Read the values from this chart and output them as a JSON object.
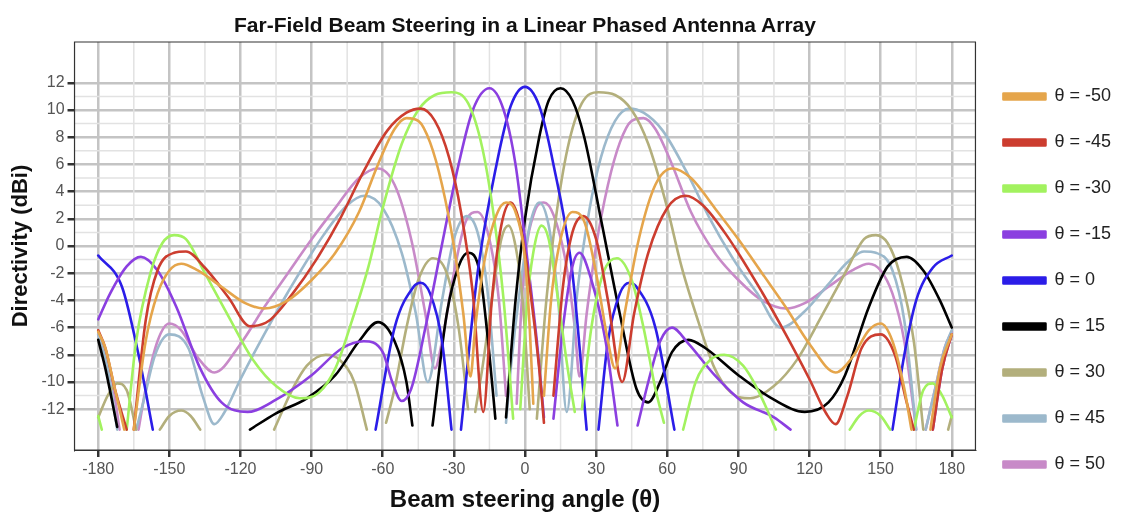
{
  "chart_data": {
    "type": "line",
    "title": "Far-Field Beam Steering in a Linear Phased Antenna Array",
    "xlabel": "Beam steering angle (θ)",
    "ylabel": "Directivity (dBi)",
    "xlim": [
      -190,
      190
    ],
    "xticks": [
      -180,
      -150,
      -120,
      -90,
      -60,
      -30,
      0,
      30,
      60,
      90,
      120,
      150,
      180
    ],
    "ylim": [
      -15,
      15
    ],
    "yticks": [
      -12,
      -10,
      -8,
      -6,
      -4,
      -2,
      0,
      2,
      4,
      6,
      8,
      10,
      12
    ],
    "grid": true,
    "legend": "right",
    "series": [
      {
        "name": "θ = -50",
        "color": "#e5a54b",
        "x": [
          -180,
          -177,
          -173,
          -169,
          -167,
          -165,
          -160,
          -155,
          -150,
          -145,
          -138,
          -128,
          -118,
          -110,
          -100,
          -90,
          -80,
          -70,
          -62,
          -55,
          -50,
          -45,
          -40,
          -35,
          -30,
          -26,
          -23,
          -21,
          -17,
          -12,
          -8,
          -4,
          0,
          2,
          3.5,
          6,
          8,
          11,
          15,
          20,
          25,
          30,
          35,
          38,
          42,
          48,
          55,
          62,
          70,
          80,
          90,
          100,
          110,
          120,
          131,
          138,
          145,
          150,
          155,
          160,
          163,
          167,
          171,
          175,
          180
        ],
        "values": [
          -6.3,
          -7.5,
          -10.5,
          -13.5,
          null,
          -13.5,
          -7,
          -3.5,
          -1.8,
          -1.3,
          -1.8,
          -3,
          -4.2,
          -4.6,
          -4,
          -2.5,
          -0.5,
          2.5,
          6,
          8.6,
          9.4,
          9.2,
          7.6,
          4.5,
          0,
          -5,
          -9.6,
          -6,
          -1,
          2.3,
          3.2,
          2.5,
          -1,
          -6,
          -11.6,
          null,
          -11,
          -4,
          0.5,
          2.5,
          1.8,
          -2,
          -7,
          -9,
          -5,
          0.5,
          4.5,
          5.7,
          5,
          2.8,
          0.5,
          -2,
          -4.5,
          -7.2,
          -9.3,
          -8.2,
          -6.2,
          -5.7,
          -7,
          -10.5,
          -13.5,
          null,
          -13.5,
          -9,
          -6.5
        ]
      },
      {
        "name": "θ = -45",
        "color": "#cc3d2f",
        "x": [
          -180,
          -177,
          -173,
          -168,
          -166,
          -165,
          -160,
          -155,
          -148,
          -143,
          -135,
          -125,
          -116,
          -108,
          -98,
          -88,
          -78,
          -68,
          -58,
          -50,
          -44,
          -38,
          -32,
          -27,
          -22,
          -17.6,
          -14,
          -10,
          -6,
          -2,
          2,
          6,
          8,
          10,
          12,
          16,
          20,
          24.6,
          30,
          35,
          41,
          46,
          52,
          60,
          67.7,
          75,
          85,
          100,
          110,
          120,
          127,
          131,
          136,
          142,
          150,
          156,
          161,
          164,
          168,
          172,
          176,
          180
        ],
        "values": [
          -6.2,
          -7.5,
          -10.5,
          -13.5,
          null,
          -13.5,
          -5.5,
          -1.8,
          -0.5,
          -0.4,
          -1.6,
          -3.8,
          -5.9,
          -5.5,
          -3.5,
          -1,
          2,
          5.5,
          8.5,
          9.8,
          10.1,
          9.2,
          6.5,
          2.5,
          -3.5,
          -12.2,
          -4,
          1.5,
          3.2,
          1.5,
          -3,
          -9,
          -13,
          null,
          -11,
          -3,
          1,
          2.2,
          0.5,
          -4,
          -10,
          -5,
          -0.5,
          2.8,
          3.7,
          3,
          0.8,
          -3.4,
          -6.5,
          -9.8,
          -12.3,
          -13.1,
          -11,
          -7.5,
          -6.5,
          -8,
          -11.5,
          -13.5,
          null,
          -13.5,
          -9,
          -6.5
        ]
      },
      {
        "name": "θ = -30",
        "color": "#a2f25f",
        "x": [
          -180,
          -178.5,
          -173,
          -168,
          -164,
          -158,
          -153,
          -148,
          -143,
          -135,
          -125,
          -115,
          -105,
          -95,
          -87,
          -80,
          -73,
          -66,
          -60,
          -52,
          -45,
          -38,
          -31,
          -24,
          -18,
          -13,
          -9,
          -5,
          -3.5,
          -2,
          1,
          4,
          7,
          10,
          14,
          18,
          21,
          22.5,
          24,
          28,
          33,
          38.8,
          45,
          50,
          55,
          58.6,
          62,
          66.7,
          72,
          78,
          84,
          92,
          98,
          105.8,
          120,
          137,
          141,
          145,
          150,
          154,
          160,
          164,
          168,
          172,
          176,
          180
        ],
        "values": [
          -12.5,
          -13.5,
          null,
          -13.5,
          -7,
          -2,
          0.2,
          0.8,
          0.5,
          -2,
          -5.2,
          -8.3,
          -10.3,
          -11.2,
          -10.8,
          -9,
          -5.5,
          -1.5,
          2.8,
          7.5,
          10,
          11.1,
          11.3,
          10.5,
          7.2,
          2,
          -4,
          -12.7,
          null,
          -12,
          -4,
          0,
          1.5,
          0.5,
          -4,
          -9,
          -12.2,
          null,
          -12,
          -6,
          -2,
          -0.9,
          -2.5,
          -6,
          -10.5,
          -13,
          null,
          -13.5,
          -10,
          -8.4,
          -8,
          -8.8,
          -10.5,
          -13.5,
          null,
          -13.5,
          -12.5,
          -12.1,
          -12.5,
          -13.5,
          null,
          -13.5,
          -10.6,
          -10.1,
          -11,
          -12.6
        ]
      },
      {
        "name": "θ = -15",
        "color": "#8b3fe0",
        "x": [
          -180,
          -175,
          -168,
          -162,
          -155,
          -147,
          -137,
          -128,
          -117,
          -105,
          -90,
          -77,
          -68,
          -60,
          -56,
          -52,
          -48,
          -42,
          -34,
          -28,
          -22,
          -15,
          -9,
          -4,
          1,
          5,
          8,
          10,
          12,
          16,
          20,
          23,
          28,
          34,
          39,
          43,
          47.5,
          52,
          57,
          62,
          69,
          80,
          92,
          105,
          112,
          140,
          172,
          176,
          180
        ],
        "values": [
          -5.4,
          -3.5,
          -1.5,
          -0.8,
          -1.8,
          -4.5,
          -9,
          -11.5,
          -12.2,
          -11.3,
          -9.5,
          -7.5,
          -7,
          -7.8,
          -10,
          -11.4,
          -10.5,
          -6,
          1,
          6,
          10,
          11.6,
          10,
          6,
          -1,
          -7,
          -12.6,
          null,
          -12.7,
          -6,
          -1.5,
          -0.5,
          -2.5,
          -7,
          -13.2,
          null,
          -13.2,
          -10,
          -7,
          -6,
          -7.2,
          -9.5,
          -11.5,
          -12.6,
          -13.5,
          null,
          -13.5,
          -9,
          -6.5
        ]
      },
      {
        "name": "θ = 0",
        "color": "#2b1de8",
        "x": [
          -180,
          -170,
          -163,
          -157,
          -110,
          -63,
          -55,
          -47,
          -44,
          -40,
          -35,
          -31,
          -29,
          -27,
          -20,
          -12,
          -6,
          0,
          6,
          12,
          20,
          26,
          28.5,
          31,
          35,
          40,
          44,
          47,
          55,
          63,
          110,
          155,
          160,
          165,
          172,
          180
        ],
        "values": [
          -0.7,
          -3,
          -8,
          -13.5,
          null,
          -13.5,
          -6,
          -3,
          -2.7,
          -3.5,
          -7,
          -13.5,
          null,
          -13.5,
          -2,
          6,
          10.3,
          11.7,
          10.3,
          6,
          -2,
          -13.5,
          null,
          -13.5,
          -7,
          -3.5,
          -2.7,
          -3,
          -6,
          -13.5,
          null,
          -13.5,
          -8,
          -4,
          -1.6,
          -0.7
        ]
      },
      {
        "name": "θ = 15",
        "color": "#000000",
        "x": [
          -180,
          -177,
          -172,
          -140,
          -116,
          -105,
          -92,
          -80,
          -70,
          -62,
          -55,
          -50,
          -47.5,
          -43,
          -39,
          -33,
          -28,
          -24,
          -19,
          -15,
          -12.5,
          -10,
          -8,
          -4,
          0,
          6,
          10,
          15,
          20,
          25,
          32,
          40,
          47,
          52,
          57,
          62,
          69,
          76,
          90,
          105,
          118,
          128,
          135,
          145,
          153,
          161,
          168,
          175,
          180
        ],
        "values": [
          -6.9,
          -9,
          -13.3,
          null,
          -13.5,
          -12.3,
          -11.2,
          -9.5,
          -7,
          -5.6,
          -7,
          -10,
          -13.2,
          null,
          -13.2,
          -5,
          -1.5,
          -0.5,
          -2,
          -8,
          -12.7,
          null,
          -12.6,
          -4,
          2,
          8,
          10.7,
          11.6,
          10.7,
          8,
          2,
          -5,
          -10.5,
          -11.5,
          -10,
          -7.8,
          -6.9,
          -7.5,
          -9.5,
          -11.3,
          -12.2,
          -11.5,
          -9.5,
          -4.5,
          -1.5,
          -0.8,
          -1.8,
          -4,
          -6
        ]
      },
      {
        "name": "θ = 30",
        "color": "#b3af7c",
        "x": [
          -180,
          -176,
          -172,
          -168,
          -164,
          -159,
          -154,
          -150,
          -145,
          -141,
          -137,
          -120,
          -105.8,
          -98,
          -92,
          -84,
          -78,
          -72,
          -66.7,
          -62,
          -58.6,
          -55,
          -50,
          -45,
          -38.8,
          -33,
          -28,
          -24,
          -22.5,
          -21,
          -18,
          -14,
          -10,
          -7,
          -4,
          -1,
          2,
          3.5,
          5,
          9,
          13,
          18,
          24,
          31,
          38,
          45,
          52,
          60,
          66,
          73,
          80,
          87,
          95,
          105,
          115,
          125,
          135,
          143,
          148,
          153,
          158,
          164,
          168,
          173,
          178.5,
          180
        ],
        "values": [
          -12.6,
          -11,
          -10.1,
          -10.6,
          -13.5,
          null,
          -13.5,
          -12.5,
          -12.1,
          -12.5,
          -13.5,
          null,
          -13.5,
          -10.5,
          -8.8,
          -8,
          -8.4,
          -10,
          -13.5,
          null,
          -13,
          -10.5,
          -6,
          -2.5,
          -0.9,
          -2,
          -6,
          -12,
          null,
          -12.2,
          -9,
          -4,
          0.5,
          1.5,
          0,
          -4,
          -12,
          null,
          -12.7,
          -4,
          2,
          7.2,
          10.5,
          11.3,
          11.1,
          10,
          7.5,
          2.8,
          -1.5,
          -5.5,
          -9,
          -10.8,
          -11.2,
          -10.3,
          -8.3,
          -5.2,
          -2,
          0.5,
          0.8,
          0.2,
          -2,
          -7,
          -13.5,
          null,
          -13.5,
          -12.5
        ]
      },
      {
        "name": "θ = 45",
        "color": "#9cb9cc",
        "x": [
          -180,
          -176,
          -172,
          -168,
          -164,
          -161,
          -156,
          -150,
          -142,
          -136,
          -131,
          -127,
          -120,
          -110,
          -100,
          -85,
          -75,
          -67.7,
          -60,
          -52,
          -46,
          -41,
          -35,
          -30,
          -24.6,
          -20,
          -16,
          -12,
          -10,
          -8,
          -6,
          -2,
          2,
          6,
          10,
          14,
          17.6,
          22,
          27,
          32,
          38,
          44,
          50,
          58,
          68,
          78,
          88,
          98,
          108,
          118,
          128,
          136,
          143,
          148,
          155,
          160,
          165,
          167,
          169,
          173,
          177,
          180
        ],
        "values": [
          -6.5,
          -9,
          -13.5,
          null,
          -13.5,
          -11.5,
          -8,
          -6.5,
          -7.5,
          -11,
          -13.1,
          -12.3,
          -9.8,
          -6.5,
          -3.4,
          0.8,
          3,
          3.7,
          2.8,
          -0.5,
          -5,
          -10,
          -4,
          0.5,
          2.2,
          1,
          -3,
          -11,
          null,
          -13,
          -9,
          -3,
          1.5,
          3.2,
          1.5,
          -4,
          -12.2,
          -3.5,
          2.5,
          6.5,
          9.2,
          10.1,
          9.8,
          8.5,
          5.5,
          2,
          -1,
          -3.5,
          -6,
          -4.8,
          -2.8,
          -1.2,
          -0.4,
          -0.5,
          -1.8,
          -5.5,
          -13.5,
          null,
          -13.5,
          -10.5,
          -7.5,
          -6.2
        ]
      },
      {
        "name": "θ = 50",
        "color": "#c88ac8",
        "x": [
          -180,
          -175,
          -171,
          -167,
          -163,
          -160,
          -155,
          -150,
          -145,
          -138,
          -131,
          -120,
          -110,
          -100,
          -90,
          -80,
          -70,
          -62,
          -55,
          -48,
          -42,
          -38,
          -35,
          -30,
          -25,
          -20,
          -15,
          -11,
          -8,
          -6,
          -3.5,
          -2,
          0,
          4,
          8,
          12,
          17,
          21,
          23,
          26,
          30,
          35,
          40,
          45,
          50,
          55,
          62,
          70,
          80,
          90,
          100,
          110,
          118,
          128,
          138,
          145,
          150,
          155,
          160,
          165,
          167,
          169,
          173,
          177,
          180
        ],
        "values": [
          -6.5,
          -9,
          -13.5,
          null,
          -13.5,
          -10.5,
          -7,
          -5.7,
          -6.2,
          -8.2,
          -9.3,
          -7.2,
          -4.5,
          -2,
          0.5,
          2.8,
          5,
          5.7,
          4.5,
          0.5,
          -5,
          -9,
          -7,
          -2,
          1.8,
          2.5,
          0.5,
          -4,
          -11,
          null,
          -11.6,
          -6,
          -1,
          2.5,
          3.2,
          2.3,
          -1,
          -6,
          -9.6,
          -5,
          0,
          4.5,
          7.6,
          9.2,
          9.4,
          8.6,
          6,
          2.5,
          -0.5,
          -2.5,
          -4,
          -4.6,
          -4.2,
          -3,
          -1.8,
          -1.3,
          -1.8,
          -3.5,
          -7,
          -13.5,
          null,
          -13.5,
          -10.5,
          -7.5,
          -6.3
        ]
      }
    ]
  }
}
